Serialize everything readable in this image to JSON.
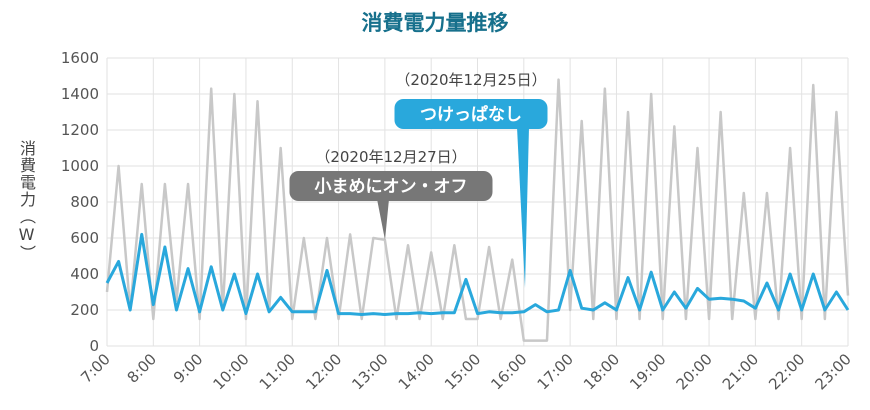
{
  "chart_data": {
    "type": "line",
    "title": "消費電力量推移",
    "y_label": "消費電力（W）",
    "x": [
      7,
      7.25,
      7.5,
      7.75,
      8,
      8.25,
      8.5,
      8.75,
      9,
      9.25,
      9.5,
      9.75,
      10,
      10.25,
      10.5,
      10.75,
      11,
      11.25,
      11.5,
      11.75,
      12,
      12.25,
      12.5,
      12.75,
      13,
      13.25,
      13.5,
      13.75,
      14,
      14.25,
      14.5,
      14.75,
      15,
      15.25,
      15.5,
      15.75,
      16,
      16.25,
      16.5,
      16.75,
      17,
      17.25,
      17.5,
      17.75,
      18,
      18.25,
      18.5,
      18.75,
      19,
      19.25,
      19.5,
      19.75,
      20,
      20.25,
      20.5,
      20.75,
      21,
      21.25,
      21.5,
      21.75,
      22,
      22.25,
      22.5,
      22.75,
      23
    ],
    "xlim": [
      7,
      23
    ],
    "xticks": [
      {
        "value": 7,
        "label": "7:00"
      },
      {
        "value": 8,
        "label": "8:00"
      },
      {
        "value": 9,
        "label": "9:00"
      },
      {
        "value": 10,
        "label": "10:00"
      },
      {
        "value": 11,
        "label": "11:00"
      },
      {
        "value": 12,
        "label": "12:00"
      },
      {
        "value": 13,
        "label": "13:00"
      },
      {
        "value": 14,
        "label": "14:00"
      },
      {
        "value": 15,
        "label": "15:00"
      },
      {
        "value": 16,
        "label": "16:00"
      },
      {
        "value": 17,
        "label": "17:00"
      },
      {
        "value": 18,
        "label": "18:00"
      },
      {
        "value": 19,
        "label": "19:00"
      },
      {
        "value": 20,
        "label": "20:00"
      },
      {
        "value": 21,
        "label": "21:00"
      },
      {
        "value": 22,
        "label": "22:00"
      },
      {
        "value": 23,
        "label": "23:00"
      }
    ],
    "ylim": [
      0,
      1600
    ],
    "yticks": [
      0,
      200,
      400,
      600,
      800,
      1000,
      1200,
      1400,
      1600
    ],
    "grid": true,
    "series": [
      {
        "name": "小まめにオン・オフ",
        "date": "（2020年12月27日）",
        "color": "#c8c8c8",
        "values": [
          300,
          1000,
          200,
          900,
          150,
          900,
          250,
          900,
          150,
          1430,
          200,
          1400,
          150,
          1360,
          200,
          1100,
          150,
          600,
          150,
          600,
          150,
          620,
          150,
          600,
          590,
          150,
          560,
          150,
          520,
          150,
          560,
          150,
          150,
          550,
          150,
          480,
          30,
          30,
          30,
          1480,
          200,
          1250,
          150,
          1430,
          150,
          1300,
          150,
          1400,
          150,
          1220,
          150,
          1100,
          150,
          1300,
          150,
          850,
          150,
          850,
          150,
          1100,
          150,
          1450,
          150,
          1300,
          280
        ]
      },
      {
        "name": "つけっぱなし",
        "date": "（2020年12月25日）",
        "color": "#29a8dc",
        "values": [
          350,
          470,
          200,
          620,
          230,
          550,
          200,
          430,
          190,
          440,
          200,
          400,
          180,
          400,
          190,
          270,
          190,
          190,
          190,
          420,
          180,
          180,
          175,
          180,
          175,
          180,
          180,
          185,
          180,
          185,
          185,
          370,
          180,
          190,
          185,
          185,
          190,
          230,
          190,
          200,
          420,
          210,
          200,
          240,
          200,
          380,
          200,
          410,
          200,
          300,
          210,
          320,
          260,
          265,
          260,
          250,
          210,
          350,
          200,
          400,
          200,
          400,
          200,
          300,
          200
        ]
      }
    ]
  }
}
